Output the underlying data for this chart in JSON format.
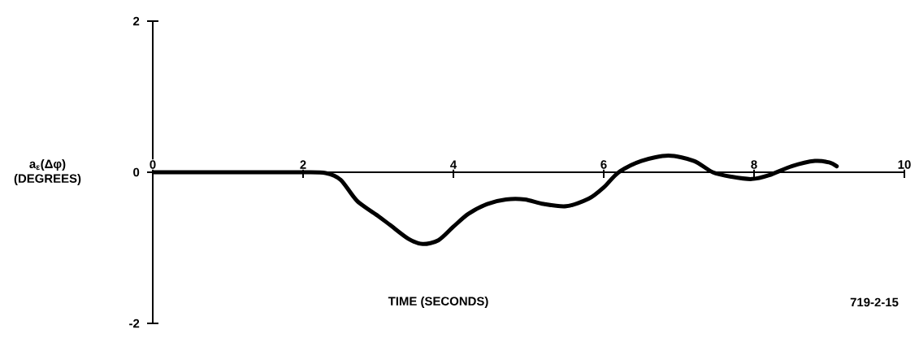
{
  "chart_data": {
    "type": "line",
    "xlabel": "TIME (SECONDS)",
    "ylabel": "a$_{ε}$(Δφ) (DEGREES)",
    "annotations": [
      "719-2-15"
    ],
    "xlim": [
      0,
      10
    ],
    "ylim": [
      -2,
      2
    ],
    "xticks": [
      0,
      2,
      4,
      6,
      8,
      10
    ],
    "yticks": [
      -2,
      0,
      2
    ],
    "color": "#000000",
    "marker": "none",
    "line_style": "solid",
    "x": [
      0,
      0.5,
      1,
      1.5,
      2,
      2.3,
      2.5,
      2.72,
      3.0,
      3.16,
      3.4,
      3.59,
      3.8,
      4.0,
      4.2,
      4.45,
      4.7,
      4.95,
      5.2,
      5.5,
      5.8,
      6.0,
      6.2,
      6.5,
      6.86,
      7.2,
      7.45,
      7.7,
      7.97,
      8.2,
      8.5,
      8.81,
      9.0,
      9.1
    ],
    "values": [
      0,
      0,
      0,
      0,
      0,
      -0.01,
      -0.1,
      -0.38,
      -0.58,
      -0.7,
      -0.88,
      -0.95,
      -0.9,
      -0.72,
      -0.55,
      -0.42,
      -0.36,
      -0.36,
      -0.42,
      -0.45,
      -0.35,
      -0.2,
      0,
      0.15,
      0.22,
      0.15,
      0,
      -0.06,
      -0.09,
      -0.04,
      0.08,
      0.15,
      0.13,
      0.08
    ]
  }
}
